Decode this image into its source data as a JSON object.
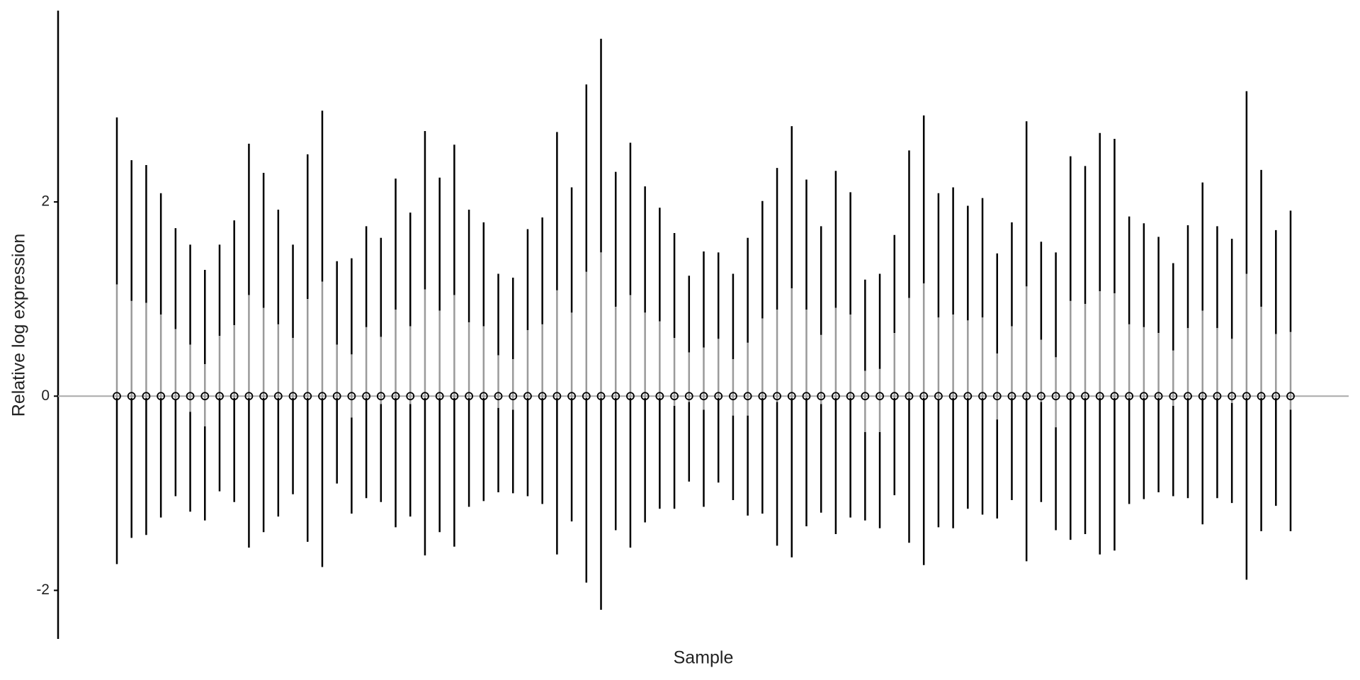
{
  "chart_data": {
    "type": "boxplot",
    "y_label": "Relative log expression",
    "x_label": "Sample",
    "ylim": [
      -2.5,
      3.97
    ],
    "yticks": [
      -2,
      0,
      2
    ],
    "hline": 0,
    "box_color": "#9a9a9a",
    "whisker_color": "#000000",
    "high": [
      2.87,
      2.43,
      2.38,
      2.09,
      1.73,
      1.56,
      1.3,
      1.56,
      1.81,
      2.6,
      2.3,
      1.92,
      1.56,
      2.49,
      2.94,
      1.39,
      1.42,
      1.75,
      1.63,
      2.24,
      1.89,
      2.73,
      2.25,
      2.59,
      1.92,
      1.79,
      1.26,
      1.22,
      1.72,
      1.84,
      2.72,
      2.15,
      3.21,
      3.68,
      2.31,
      2.61,
      2.16,
      1.94,
      1.68,
      1.24,
      1.49,
      1.48,
      1.26,
      1.63,
      2.01,
      2.35,
      2.78,
      2.23,
      1.75,
      2.32,
      2.1,
      1.2,
      1.26,
      1.66,
      2.53,
      2.89,
      2.09,
      2.15,
      1.96,
      2.04,
      1.47,
      1.79,
      2.83,
      1.59,
      1.48,
      2.47,
      2.37,
      2.71,
      2.65,
      1.85,
      1.78,
      1.64,
      1.37,
      1.76,
      2.2,
      1.75,
      1.62,
      3.14,
      2.33,
      1.71,
      1.91
    ],
    "q3": [
      1.15,
      0.98,
      0.96,
      0.84,
      0.69,
      0.53,
      0.33,
      0.62,
      0.73,
      1.04,
      0.91,
      0.74,
      0.6,
      1.0,
      1.18,
      0.53,
      0.43,
      0.71,
      0.61,
      0.89,
      0.72,
      1.1,
      0.88,
      1.04,
      0.76,
      0.72,
      0.42,
      0.38,
      0.68,
      0.74,
      1.09,
      0.86,
      1.28,
      1.48,
      0.92,
      1.04,
      0.86,
      0.77,
      0.6,
      0.45,
      0.5,
      0.59,
      0.38,
      0.55,
      0.8,
      0.89,
      1.11,
      0.89,
      0.63,
      0.91,
      0.84,
      0.26,
      0.28,
      0.65,
      1.01,
      1.16,
      0.81,
      0.84,
      0.78,
      0.81,
      0.44,
      0.72,
      1.13,
      0.58,
      0.4,
      0.98,
      0.95,
      1.08,
      1.06,
      0.74,
      0.71,
      0.65,
      0.47,
      0.7,
      0.88,
      0.7,
      0.59,
      1.26,
      0.92,
      0.64,
      0.66
    ],
    "median": [
      0,
      0,
      0,
      0,
      0,
      0,
      0,
      0,
      0,
      0,
      0,
      0,
      0,
      0,
      0,
      0,
      0,
      0,
      0,
      0,
      0,
      0,
      0,
      0,
      0,
      0,
      0,
      0,
      0,
      0,
      0,
      0,
      0,
      0,
      0,
      0,
      0,
      0,
      0,
      0,
      0,
      0,
      0,
      0,
      0,
      0,
      0,
      0,
      0,
      0,
      0,
      0,
      0,
      0,
      0,
      0,
      0,
      0,
      0,
      0,
      0,
      0,
      0,
      0,
      0,
      0,
      0,
      0,
      0,
      0,
      0,
      0,
      0,
      0,
      0,
      0,
      0,
      0,
      0,
      0,
      0
    ],
    "q1": [
      -0.02,
      -0.02,
      -0.02,
      -0.02,
      -0.04,
      -0.16,
      -0.31,
      -0.02,
      -0.02,
      -0.02,
      -0.02,
      -0.02,
      -0.02,
      -0.02,
      -0.02,
      -0.02,
      -0.22,
      -0.02,
      -0.08,
      -0.02,
      -0.08,
      -0.02,
      -0.02,
      -0.02,
      -0.02,
      -0.02,
      -0.12,
      -0.14,
      -0.02,
      -0.02,
      -0.02,
      -0.02,
      -0.02,
      -0.02,
      -0.02,
      -0.02,
      -0.02,
      -0.02,
      -0.1,
      -0.06,
      -0.14,
      -0.02,
      -0.2,
      -0.2,
      -0.02,
      -0.06,
      -0.02,
      -0.02,
      -0.08,
      -0.02,
      -0.02,
      -0.37,
      -0.37,
      -0.02,
      -0.02,
      -0.02,
      -0.04,
      -0.02,
      -0.02,
      -0.02,
      -0.24,
      -0.02,
      -0.02,
      -0.06,
      -0.32,
      -0.02,
      -0.02,
      -0.02,
      -0.02,
      -0.02,
      -0.02,
      -0.02,
      -0.1,
      -0.02,
      -0.02,
      -0.02,
      -0.07,
      -0.02,
      -0.02,
      -0.02,
      -0.14
    ],
    "low": [
      -1.73,
      -1.46,
      -1.43,
      -1.25,
      -1.03,
      -1.19,
      -1.28,
      -0.98,
      -1.09,
      -1.56,
      -1.4,
      -1.24,
      -1.01,
      -1.5,
      -1.76,
      -0.9,
      -1.21,
      -1.05,
      -1.09,
      -1.35,
      -1.24,
      -1.64,
      -1.4,
      -1.55,
      -1.14,
      -1.08,
      -0.99,
      -1.0,
      -1.03,
      -1.11,
      -1.63,
      -1.29,
      -1.92,
      -2.2,
      -1.38,
      -1.56,
      -1.3,
      -1.16,
      -1.16,
      -0.88,
      -1.14,
      -0.89,
      -1.07,
      -1.23,
      -1.21,
      -1.54,
      -1.66,
      -1.34,
      -1.2,
      -1.42,
      -1.25,
      -1.28,
      -1.36,
      -1.02,
      -1.51,
      -1.74,
      -1.35,
      -1.36,
      -1.16,
      -1.22,
      -1.26,
      -1.07,
      -1.7,
      -1.09,
      -1.38,
      -1.48,
      -1.42,
      -1.63,
      -1.59,
      -1.11,
      -1.06,
      -0.99,
      -1.03,
      -1.05,
      -1.32,
      -1.05,
      -1.1,
      -1.89,
      -1.39,
      -1.13,
      -1.39
    ]
  }
}
